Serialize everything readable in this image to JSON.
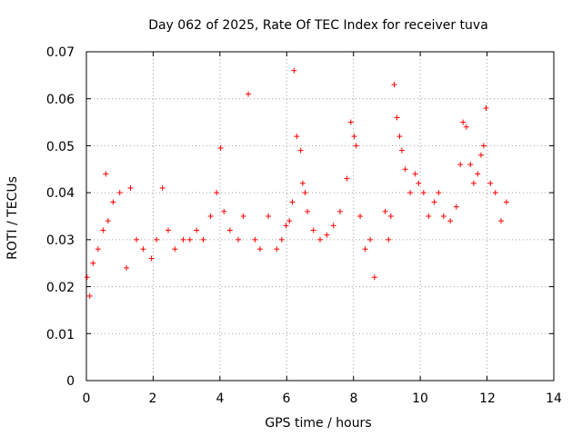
{
  "chart_data": {
    "type": "scatter",
    "title": "Day 062 of 2025, Rate Of TEC Index for receiver tuva",
    "xlabel": "GPS time / hours",
    "ylabel": "ROTI / TECUs",
    "xlim": [
      0,
      14
    ],
    "ylim": [
      0,
      0.07
    ],
    "grid": true,
    "x_ticks": [
      0,
      2,
      4,
      6,
      8,
      10,
      12,
      14
    ],
    "y_ticks": [
      0,
      0.01,
      0.02,
      0.03,
      0.04,
      0.05,
      0.06,
      0.07
    ],
    "x_tick_labels": [
      "0",
      "2",
      "4",
      "6",
      "8",
      "10",
      "12",
      "14"
    ],
    "y_tick_labels": [
      "0",
      "0.01",
      "0.02",
      "0.03",
      "0.04",
      "0.05",
      "0.06",
      "0.07"
    ],
    "marker": "plus",
    "color": "#ff0000",
    "series": [
      {
        "name": "ROTI",
        "x": [
          0.02,
          0.1,
          0.2,
          0.35,
          0.5,
          0.58,
          0.65,
          0.8,
          1.0,
          1.2,
          1.32,
          1.5,
          1.7,
          1.95,
          2.1,
          2.28,
          2.45,
          2.65,
          2.9,
          3.1,
          3.3,
          3.5,
          3.72,
          3.9,
          4.02,
          4.12,
          4.3,
          4.55,
          4.7,
          4.85,
          5.05,
          5.2,
          5.45,
          5.7,
          5.85,
          5.98,
          6.08,
          6.17,
          6.22,
          6.3,
          6.42,
          6.48,
          6.55,
          6.62,
          6.8,
          7.0,
          7.2,
          7.4,
          7.6,
          7.8,
          7.92,
          8.02,
          8.08,
          8.2,
          8.35,
          8.5,
          8.63,
          8.95,
          9.05,
          9.12,
          9.22,
          9.3,
          9.38,
          9.45,
          9.55,
          9.7,
          9.85,
          9.95,
          10.1,
          10.25,
          10.42,
          10.55,
          10.7,
          10.9,
          11.08,
          11.2,
          11.28,
          11.38,
          11.5,
          11.6,
          11.72,
          11.82,
          11.9,
          11.97,
          12.1,
          12.25,
          12.42,
          12.58
        ],
        "y": [
          0.022,
          0.018,
          0.025,
          0.028,
          0.032,
          0.044,
          0.034,
          0.038,
          0.04,
          0.024,
          0.041,
          0.03,
          0.028,
          0.026,
          0.03,
          0.041,
          0.032,
          0.028,
          0.03,
          0.03,
          0.032,
          0.03,
          0.035,
          0.04,
          0.0495,
          0.036,
          0.032,
          0.03,
          0.035,
          0.061,
          0.03,
          0.028,
          0.035,
          0.028,
          0.03,
          0.033,
          0.034,
          0.038,
          0.066,
          0.052,
          0.049,
          0.042,
          0.04,
          0.036,
          0.032,
          0.03,
          0.031,
          0.033,
          0.036,
          0.043,
          0.055,
          0.052,
          0.05,
          0.035,
          0.028,
          0.03,
          0.022,
          0.036,
          0.03,
          0.035,
          0.063,
          0.056,
          0.052,
          0.049,
          0.045,
          0.04,
          0.044,
          0.042,
          0.04,
          0.035,
          0.038,
          0.04,
          0.035,
          0.034,
          0.037,
          0.046,
          0.055,
          0.054,
          0.046,
          0.042,
          0.044,
          0.048,
          0.05,
          0.058,
          0.042,
          0.04,
          0.034,
          0.038
        ]
      }
    ]
  }
}
